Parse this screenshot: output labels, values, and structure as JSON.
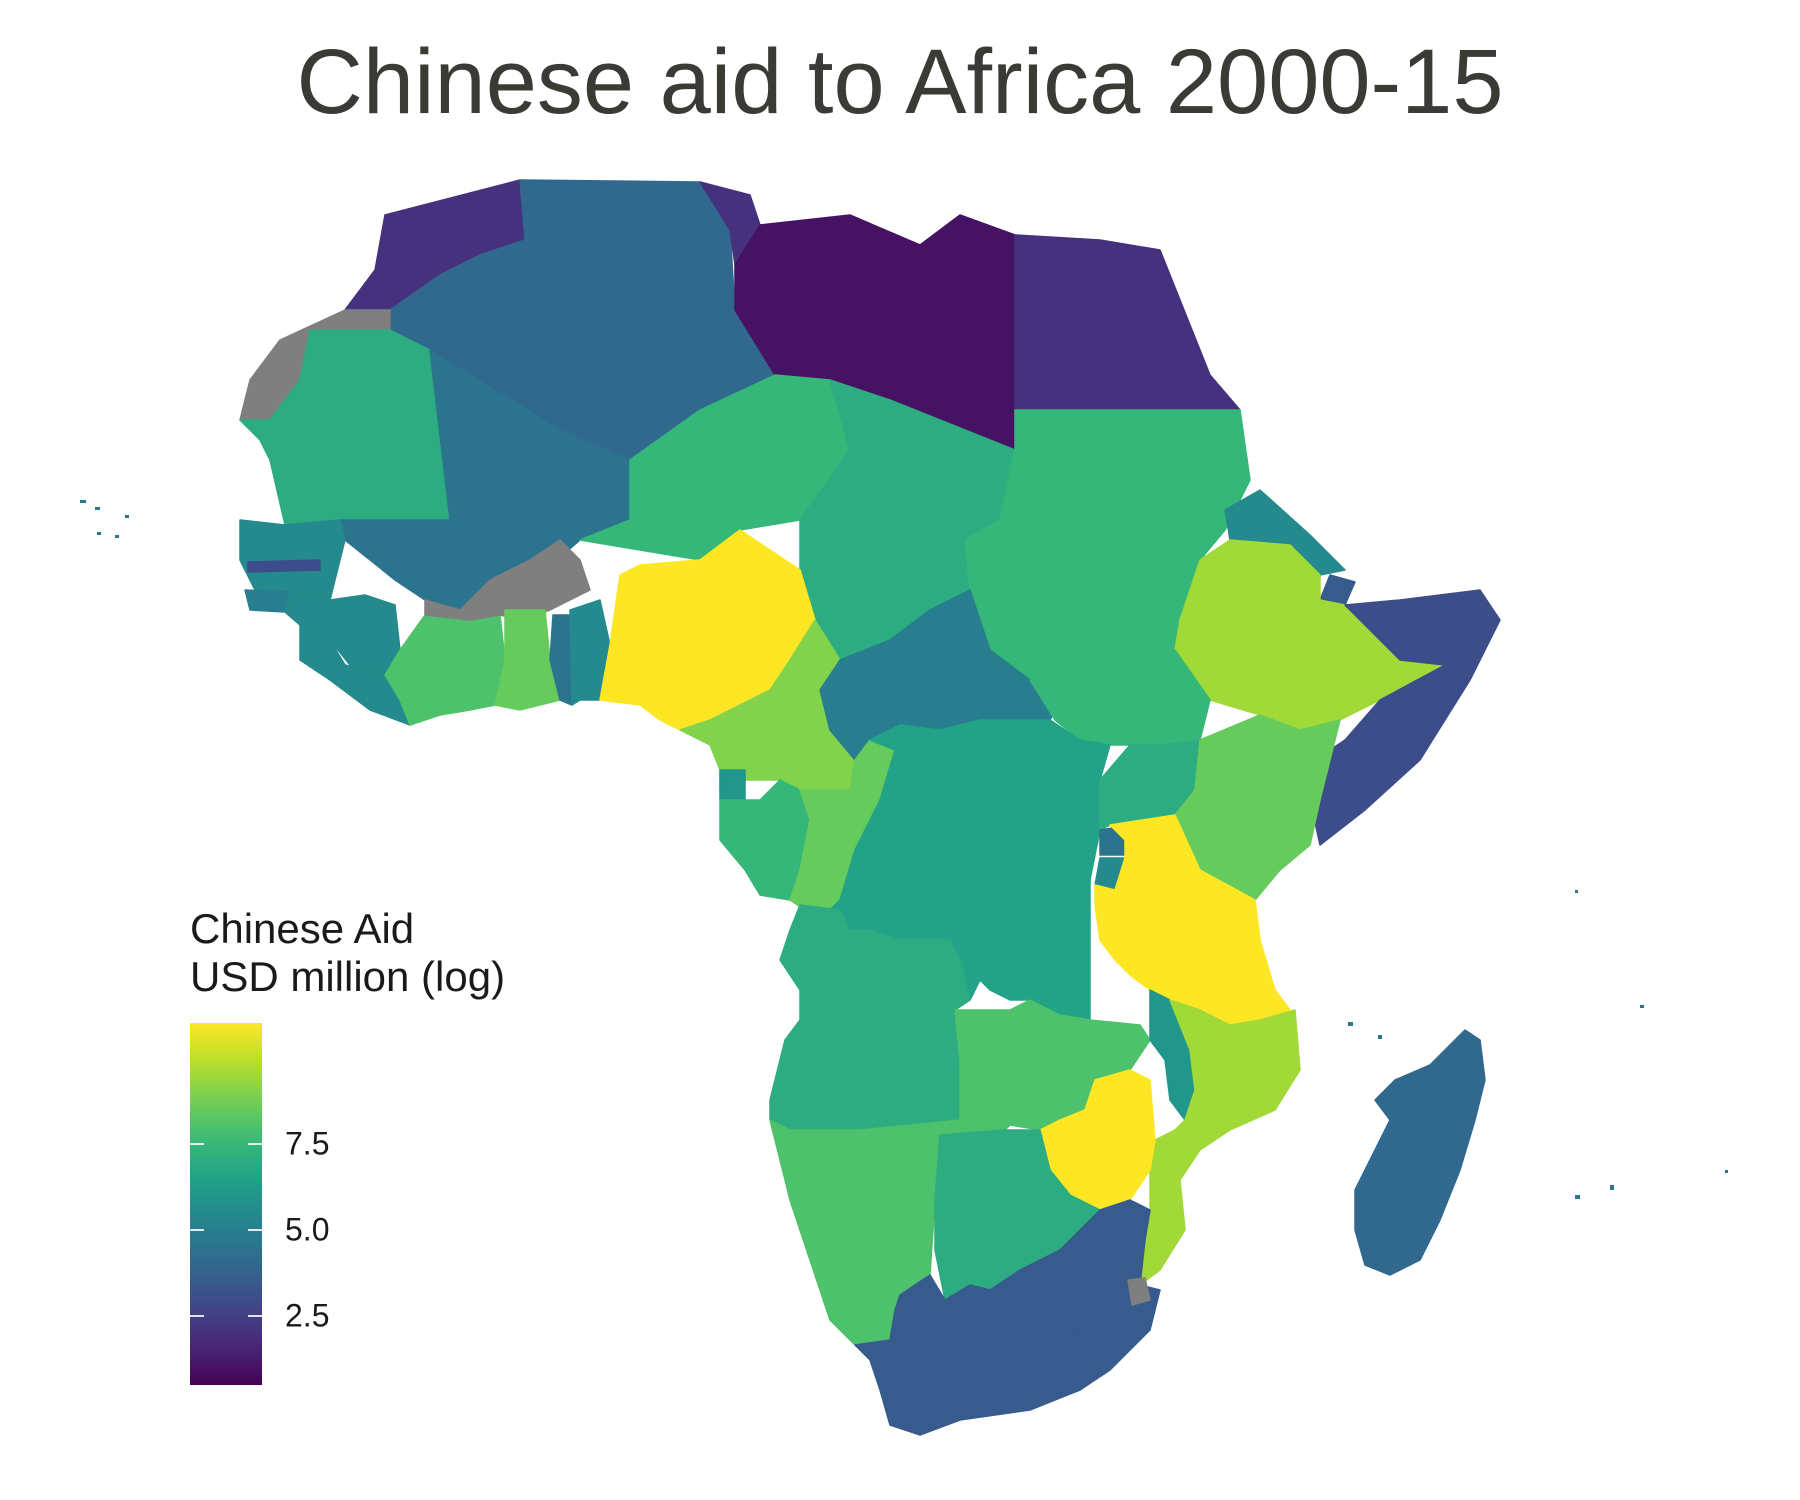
{
  "title": "Chinese aid to Africa 2000-15",
  "legend": {
    "title_line1": "Chinese Aid",
    "title_line2": "USD million (log)",
    "ticks": [
      {
        "label": "7.5",
        "value": 7.5
      },
      {
        "label": "5.0",
        "value": 5.0
      },
      {
        "label": "2.5",
        "value": 2.5
      }
    ],
    "scale_min": 0.5,
    "scale_max": 11.0
  },
  "colors": {
    "no_data": "#7f7f7f",
    "palette": "viridis",
    "title": "#3b3b36"
  },
  "chart_data": {
    "type": "choropleth",
    "title": "Chinese aid to Africa 2000-15",
    "legend_title": "Chinese Aid USD million (log)",
    "legend_placement": "bottom-left",
    "value_range": [
      0.5,
      11.0
    ],
    "regions": [
      {
        "name": "Morocco",
        "value": 2.0
      },
      {
        "name": "Algeria",
        "value": 4.0
      },
      {
        "name": "Tunisia",
        "value": 2.0
      },
      {
        "name": "Libya",
        "value": 1.0
      },
      {
        "name": "Egypt",
        "value": 2.0
      },
      {
        "name": "Western Sahara",
        "value": null
      },
      {
        "name": "Mauritania",
        "value": 7.0
      },
      {
        "name": "Mali",
        "value": 4.5
      },
      {
        "name": "Niger",
        "value": 7.5
      },
      {
        "name": "Chad",
        "value": 7.0
      },
      {
        "name": "Sudan",
        "value": 7.5
      },
      {
        "name": "Eritrea",
        "value": 5.5
      },
      {
        "name": "Djibouti",
        "value": 3.5
      },
      {
        "name": "Ethiopia",
        "value": 9.5
      },
      {
        "name": "Somalia",
        "value": 3.0
      },
      {
        "name": "Senegal",
        "value": 5.5
      },
      {
        "name": "Gambia",
        "value": 3.0
      },
      {
        "name": "Guinea-Bissau",
        "value": 5.0
      },
      {
        "name": "Guinea",
        "value": 5.5
      },
      {
        "name": "Sierra Leone",
        "value": 5.5
      },
      {
        "name": "Liberia",
        "value": 5.5
      },
      {
        "name": "Ivory Coast",
        "value": 8.0
      },
      {
        "name": "Burkina Faso",
        "value": null
      },
      {
        "name": "Ghana",
        "value": 8.5
      },
      {
        "name": "Togo",
        "value": 4.5
      },
      {
        "name": "Benin",
        "value": 5.5
      },
      {
        "name": "Nigeria",
        "value": 11.0
      },
      {
        "name": "Cameroon",
        "value": 9.0
      },
      {
        "name": "Central African Republic",
        "value": 5.0
      },
      {
        "name": "South Sudan",
        "value": 7.5
      },
      {
        "name": "Equatorial Guinea",
        "value": 6.0
      },
      {
        "name": "Gabon",
        "value": 7.5
      },
      {
        "name": "Republic of the Congo",
        "value": 8.5
      },
      {
        "name": "DR Congo",
        "value": 6.5
      },
      {
        "name": "Uganda",
        "value": 7.0
      },
      {
        "name": "Kenya",
        "value": 8.5
      },
      {
        "name": "Rwanda",
        "value": 4.5
      },
      {
        "name": "Burundi",
        "value": 5.5
      },
      {
        "name": "Tanzania",
        "value": 11.0
      },
      {
        "name": "Angola",
        "value": 7.0
      },
      {
        "name": "Zambia",
        "value": 8.0
      },
      {
        "name": "Malawi",
        "value": 6.0
      },
      {
        "name": "Mozambique",
        "value": 9.5
      },
      {
        "name": "Zimbabwe",
        "value": 11.0
      },
      {
        "name": "Namibia",
        "value": 8.0
      },
      {
        "name": "Botswana",
        "value": 7.0
      },
      {
        "name": "South Africa",
        "value": 3.5
      },
      {
        "name": "Lesotho",
        "value": 3.5
      },
      {
        "name": "Eswatini",
        "value": null
      },
      {
        "name": "Madagascar",
        "value": 4.0
      }
    ]
  }
}
